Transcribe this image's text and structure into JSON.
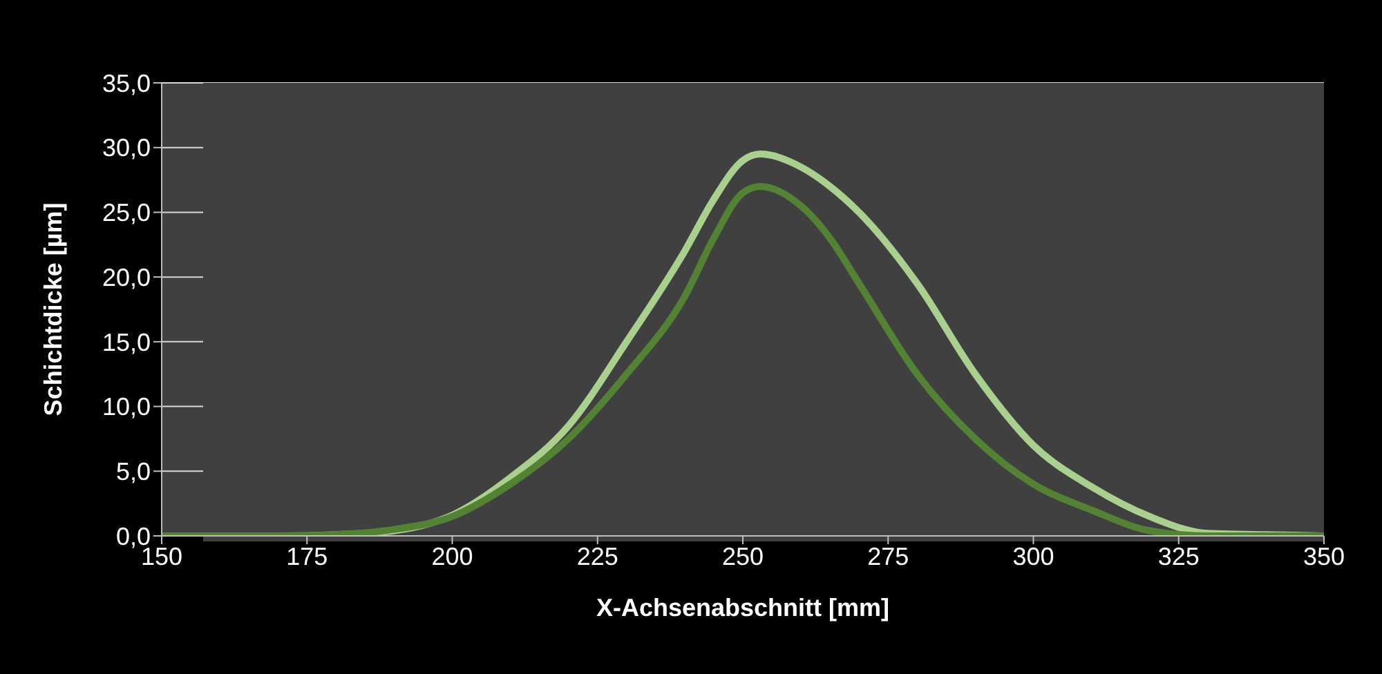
{
  "chart_data": {
    "type": "line",
    "xlabel": "X-Achsenabschnitt [mm]",
    "ylabel": "Schichtdicke [µm]",
    "xlim": [
      150,
      350
    ],
    "xticks": [
      150,
      175,
      200,
      225,
      250,
      275,
      300,
      325,
      350
    ],
    "ylim": [
      0,
      35
    ],
    "yticks": [
      {
        "value": 0,
        "label": "0,0"
      },
      {
        "value": 5,
        "label": "5,0"
      },
      {
        "value": 10,
        "label": "10,0"
      },
      {
        "value": 15,
        "label": "15,0"
      },
      {
        "value": 20,
        "label": "20,0"
      },
      {
        "value": 25,
        "label": "25,0"
      },
      {
        "value": 30,
        "label": "30,0"
      },
      {
        "value": 35,
        "label": "35,0"
      }
    ],
    "grid": "y",
    "marker": "none",
    "line_style": "solid",
    "series": [
      {
        "color": "#a9d08e",
        "x": [
          150,
          160,
          170,
          180,
          190,
          200,
          210,
          220,
          230,
          240,
          245,
          250,
          253,
          260,
          265,
          270,
          280,
          290,
          300,
          310,
          320,
          330,
          340,
          350
        ],
        "values": [
          0,
          0,
          0,
          0.1,
          0.4,
          1.6,
          4.5,
          8.5,
          15,
          22,
          26,
          29,
          29.5,
          28.5,
          27,
          25,
          19.5,
          12.5,
          7,
          3.8,
          1.5,
          0.2,
          0.1,
          0
        ]
      },
      {
        "color": "#548235",
        "x": [
          150,
          160,
          170,
          180,
          190,
          200,
          210,
          220,
          230,
          240,
          245,
          250,
          253,
          260,
          265,
          270,
          280,
          290,
          300,
          310,
          320,
          330,
          340,
          350
        ],
        "values": [
          0,
          0,
          0,
          0.1,
          0.5,
          1.5,
          4,
          7.5,
          12.5,
          18.5,
          23,
          26.5,
          27,
          25.5,
          23,
          19.5,
          12.5,
          7.5,
          4,
          2,
          0.4,
          0,
          0,
          0
        ]
      }
    ]
  }
}
